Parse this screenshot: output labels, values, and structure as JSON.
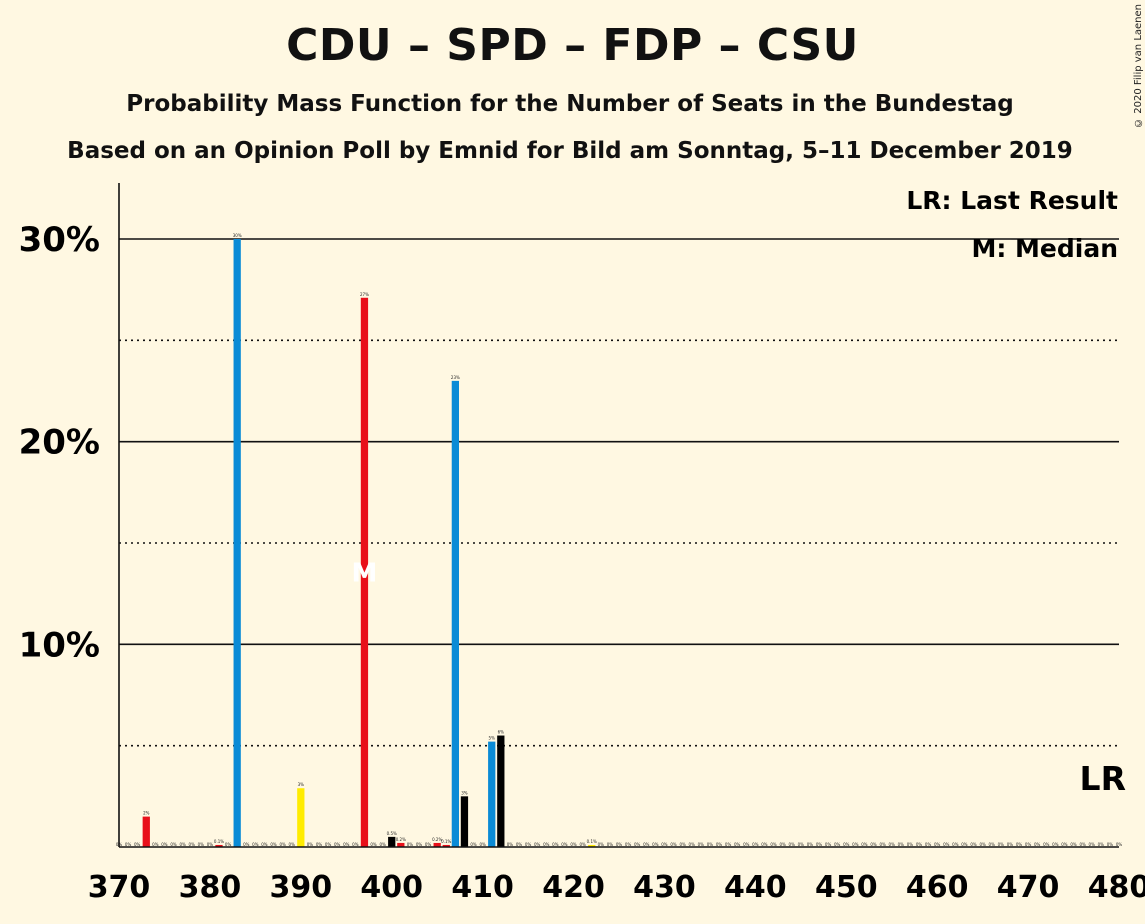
{
  "title": "CDU – SPD – FDP – CSU",
  "subtitle1": "Probability Mass Function for the Number of Seats in the Bundestag",
  "subtitle2": "Based on an Opinion Poll by Emnid for Bild am Sonntag, 5–11 December 2019",
  "copyright": "© 2020 Filip van Laenen",
  "chart_data": {
    "type": "bar",
    "xlim": [
      370,
      480
    ],
    "ylim": [
      0,
      32
    ],
    "x_ticks": [
      370,
      380,
      390,
      400,
      410,
      420,
      430,
      440,
      450,
      460,
      470,
      480
    ],
    "x_tick_labels": [
      "370",
      "380",
      "390",
      "400",
      "410",
      "420",
      "430",
      "440",
      "450",
      "460",
      "470",
      "480"
    ],
    "y_ticks_solid": [
      10,
      20,
      30
    ],
    "y_tick_labels": [
      "10%",
      "20%",
      "30%"
    ],
    "y_ticks_dotted": [
      5,
      15,
      25
    ],
    "legend": [
      "LR: Last Result",
      "M: Median"
    ],
    "last_result_label": "LR",
    "median_label": "M",
    "median_x": 397,
    "last_result_x": 479,
    "zero_label": "0%",
    "bars": [
      {
        "x": 373,
        "value": 1.5,
        "label": "2%",
        "color": "#e8101a"
      },
      {
        "x": 381,
        "value": 0.1,
        "label": "0.1%",
        "color": "#e8101a"
      },
      {
        "x": 383,
        "value": 30.0,
        "label": "30%",
        "color": "#0a8bd6"
      },
      {
        "x": 390,
        "value": 2.9,
        "label": "3%",
        "color": "#ffec00"
      },
      {
        "x": 397,
        "value": 27.1,
        "label": "27%",
        "color": "#e8101a"
      },
      {
        "x": 400,
        "value": 0.5,
        "label": "0.5%",
        "color": "#000000"
      },
      {
        "x": 401,
        "value": 0.2,
        "label": "0.2%",
        "color": "#e8101a"
      },
      {
        "x": 405,
        "value": 0.2,
        "label": "0.2%",
        "color": "#e8101a"
      },
      {
        "x": 406,
        "value": 0.1,
        "label": "0.1%",
        "color": "#e8101a"
      },
      {
        "x": 407,
        "value": 23.0,
        "label": "23%",
        "color": "#0a8bd6"
      },
      {
        "x": 408,
        "value": 2.5,
        "label": "3%",
        "color": "#000000"
      },
      {
        "x": 411,
        "value": 5.2,
        "label": "5%",
        "color": "#0a8bd6"
      },
      {
        "x": 412,
        "value": 5.5,
        "label": "6%",
        "color": "#000000"
      },
      {
        "x": 422,
        "value": 0.1,
        "label": "0.1%",
        "color": "#ffec00"
      }
    ]
  }
}
